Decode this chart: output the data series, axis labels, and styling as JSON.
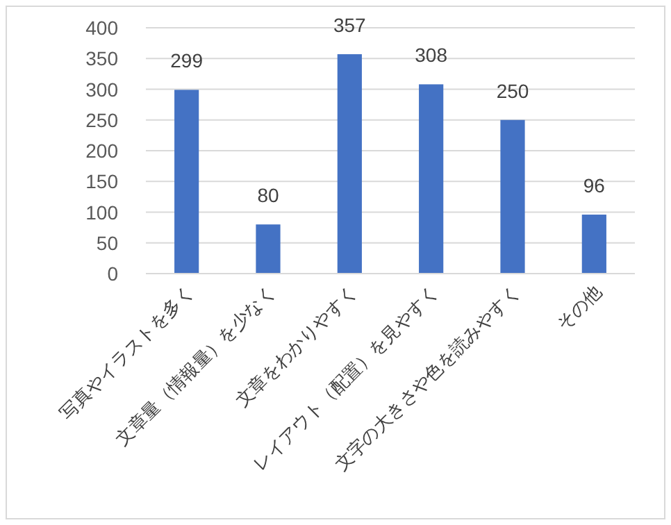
{
  "chart_data": {
    "type": "bar",
    "categories": [
      "写真やイラストを多く",
      "文章量（情報量）を少なく",
      "文章をわかりやすく",
      "レイアウト（配置）を見やすく",
      "文字の大きさや色を読みやすく",
      "その他"
    ],
    "values": [
      299,
      80,
      357,
      308,
      250,
      96
    ],
    "color": "#4472c4",
    "ylim": [
      0,
      400
    ],
    "yticks": [
      0,
      50,
      100,
      150,
      200,
      250,
      300,
      350,
      400
    ],
    "grid": "y",
    "data_labels": true
  }
}
